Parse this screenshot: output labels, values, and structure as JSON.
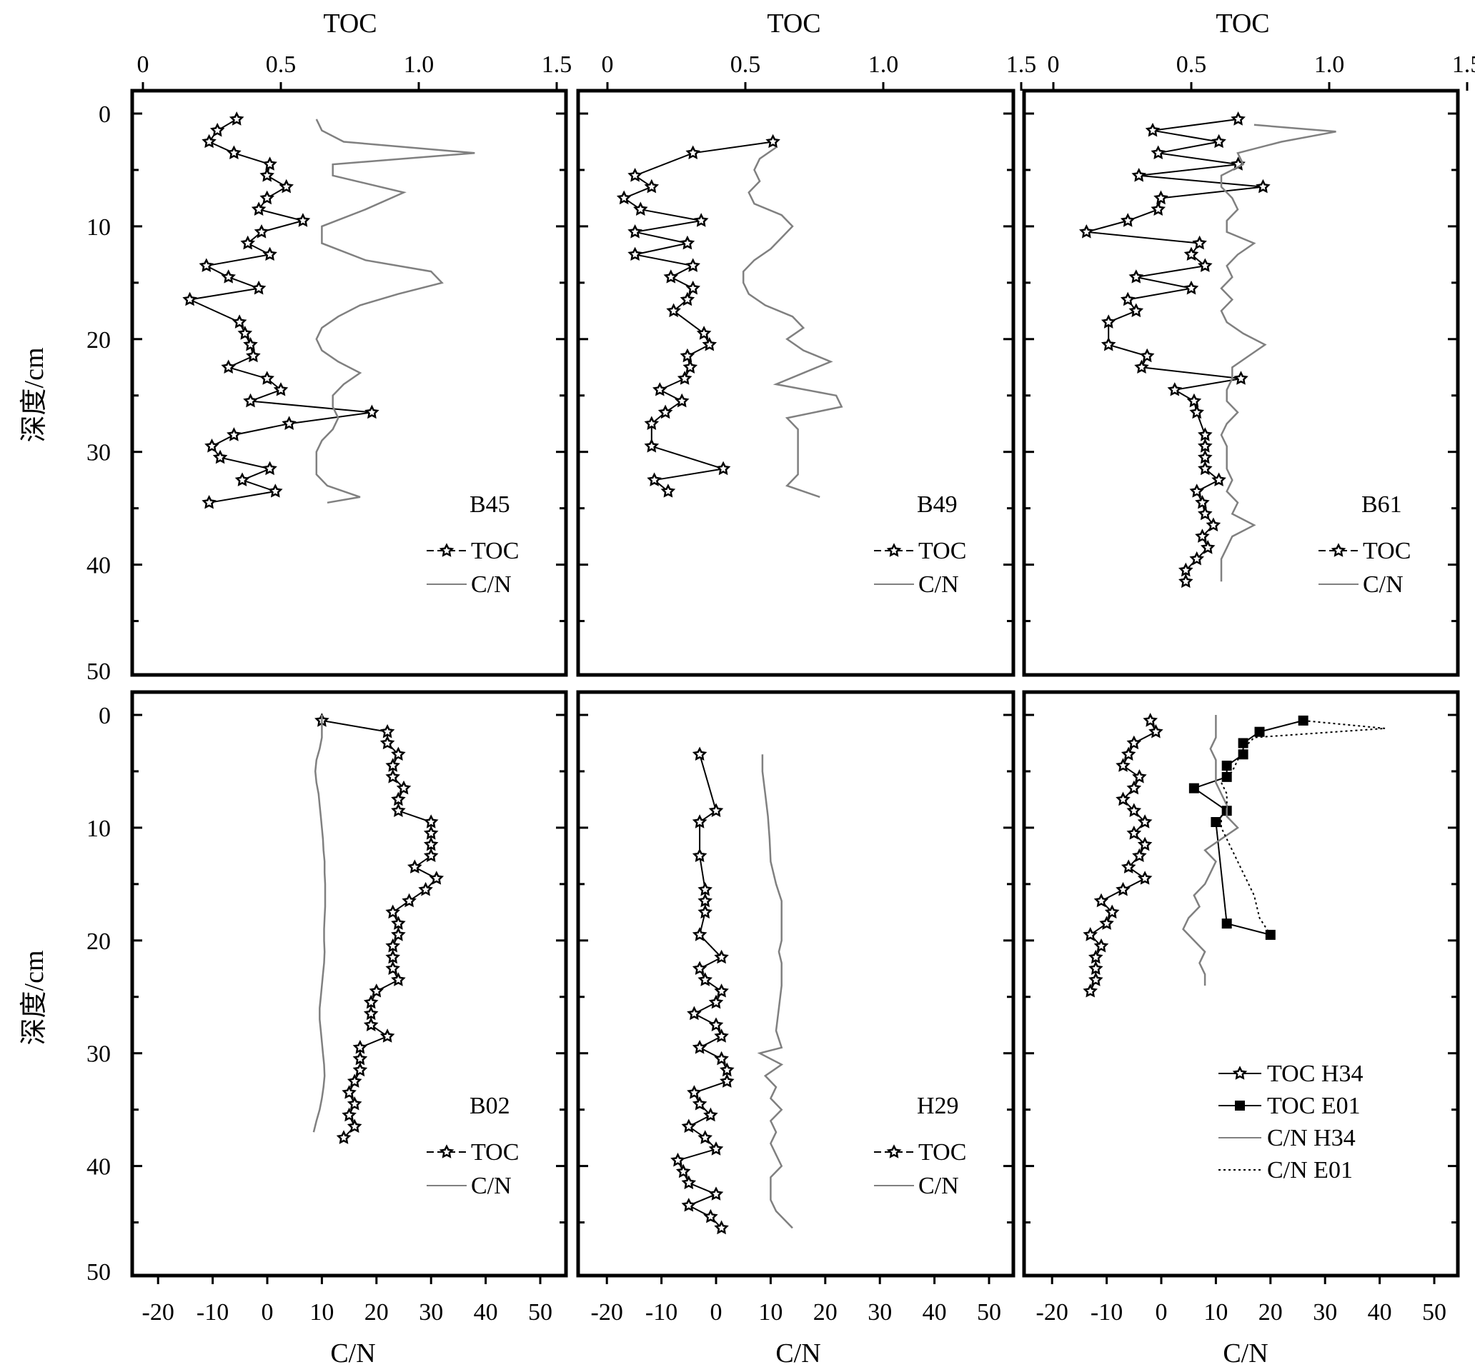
{
  "figure": {
    "top_axis_title": "TOC",
    "bottom_axis_title": "C/N",
    "y_axis_title": "深度/cm",
    "toc_ticks": [
      "0",
      "0.5",
      "1.0",
      "1.5"
    ],
    "cn_ticks": [
      "-20",
      "-10",
      "0",
      "10",
      "20",
      "30",
      "40",
      "50"
    ],
    "depth_ticks": [
      "0",
      "10",
      "20",
      "30",
      "40",
      "50"
    ]
  },
  "colors": {
    "toc": "#000000",
    "cn": "#808080",
    "cn_e01": "#000000"
  },
  "chart_data": [
    {
      "type": "line",
      "panel": "top-left",
      "site_label": "B45",
      "toc_range": [
        0,
        1.6
      ],
      "cn_range": [
        -25,
        55
      ],
      "depth_range": [
        -2,
        50
      ],
      "legend": [
        "TOC",
        "C/N"
      ],
      "series": [
        {
          "name": "TOC",
          "variable": "TOC",
          "marker": "star",
          "depth": [
            0.5,
            1.5,
            2.5,
            3.5,
            4.5,
            5.5,
            6.5,
            7.5,
            8.5,
            9.5,
            10.5,
            11.5,
            12.5,
            13.5,
            14.5,
            15.5,
            16.5,
            18.5,
            19.5,
            20.5,
            21.5,
            22.5,
            23.5,
            24.5,
            25.5,
            26.5,
            27.5,
            28.5,
            29.5,
            30.5,
            31.5,
            32.5,
            33.5,
            34.5
          ],
          "values": [
            0.34,
            0.27,
            0.24,
            0.33,
            0.46,
            0.45,
            0.52,
            0.45,
            0.42,
            0.58,
            0.43,
            0.38,
            0.46,
            0.23,
            0.31,
            0.42,
            0.17,
            0.35,
            0.37,
            0.39,
            0.4,
            0.31,
            0.45,
            0.5,
            0.39,
            0.83,
            0.53,
            0.33,
            0.25,
            0.28,
            0.46,
            0.36,
            0.48,
            0.24
          ]
        },
        {
          "name": "C/N",
          "variable": "C/N",
          "marker": "none",
          "depth": [
            0.5,
            1.5,
            2.5,
            3.5,
            4.5,
            5.5,
            7,
            8.5,
            10,
            11.5,
            13,
            14,
            15,
            16,
            17,
            18,
            19,
            20,
            21,
            22,
            23,
            24,
            25,
            26,
            27,
            28,
            29,
            30,
            31,
            32,
            33,
            34,
            34.5
          ],
          "values": [
            9,
            10,
            14,
            38,
            12,
            12,
            25,
            18,
            10,
            10,
            18,
            30,
            32,
            24,
            17,
            13,
            10,
            9,
            10,
            13,
            17,
            14,
            12,
            12,
            13,
            12,
            10,
            9,
            9,
            9,
            11,
            17,
            11
          ]
        }
      ]
    },
    {
      "type": "line",
      "panel": "top-middle",
      "site_label": "B49",
      "toc_range": [
        0,
        1.6
      ],
      "cn_range": [
        -25,
        55
      ],
      "depth_range": [
        -2,
        50
      ],
      "legend": [
        "TOC",
        "C/N"
      ],
      "series": [
        {
          "name": "TOC",
          "variable": "TOC",
          "marker": "star",
          "depth": [
            2.5,
            3.5,
            5.5,
            6.5,
            7.5,
            8.5,
            9.5,
            10.5,
            11.5,
            12.5,
            13.5,
            14.5,
            15.5,
            16.5,
            17.5,
            19.5,
            20.5,
            21.5,
            22.5,
            23.5,
            24.5,
            25.5,
            26.5,
            27.5,
            29.5,
            31.5,
            32.5,
            33.5
          ],
          "values": [
            0.6,
            0.31,
            0.1,
            0.16,
            0.06,
            0.12,
            0.34,
            0.1,
            0.29,
            0.1,
            0.31,
            0.23,
            0.31,
            0.29,
            0.24,
            0.35,
            0.37,
            0.29,
            0.3,
            0.28,
            0.19,
            0.27,
            0.21,
            0.16,
            0.16,
            0.42,
            0.17,
            0.22
          ]
        },
        {
          "name": "C/N",
          "variable": "C/N",
          "marker": "none",
          "depth": [
            3,
            4,
            5,
            6,
            7,
            8,
            9,
            10,
            11,
            12,
            13,
            14,
            15,
            16,
            17,
            18,
            19,
            20,
            21,
            22,
            23,
            24,
            25,
            26,
            27,
            28,
            29,
            30,
            31,
            32,
            33,
            34
          ],
          "values": [
            11,
            8,
            7,
            8,
            6,
            7,
            12,
            14,
            12,
            10,
            7,
            5,
            5,
            6,
            9,
            14,
            16,
            13,
            16,
            21,
            16,
            11,
            22,
            23,
            13,
            15,
            15,
            15,
            15,
            15,
            13,
            19
          ]
        }
      ]
    },
    {
      "type": "line",
      "panel": "top-right",
      "site_label": "B61",
      "toc_range": [
        0,
        1.6
      ],
      "cn_range": [
        -25,
        55
      ],
      "depth_range": [
        -2,
        50
      ],
      "legend": [
        "TOC",
        "C/N"
      ],
      "series": [
        {
          "name": "TOC",
          "variable": "TOC",
          "marker": "star",
          "depth": [
            0.5,
            1.5,
            2.5,
            3.5,
            4.5,
            5.5,
            6.5,
            7.5,
            8.5,
            9.5,
            10.5,
            11.5,
            12.5,
            13.5,
            14.5,
            15.5,
            16.5,
            17.5,
            18.5,
            20.5,
            21.5,
            22.5,
            23.5,
            24.5,
            25.5,
            26.5,
            28.5,
            29.5,
            30.5,
            31.5,
            32.5,
            33.5,
            34.5,
            35.5,
            36.5,
            37.5,
            38.5,
            39.5,
            40.5,
            41.5
          ],
          "values": [
            0.67,
            0.36,
            0.6,
            0.38,
            0.67,
            0.31,
            0.76,
            0.39,
            0.38,
            0.27,
            0.12,
            0.53,
            0.5,
            0.55,
            0.3,
            0.5,
            0.27,
            0.3,
            0.2,
            0.2,
            0.34,
            0.32,
            0.68,
            0.44,
            0.51,
            0.52,
            0.55,
            0.55,
            0.55,
            0.55,
            0.6,
            0.52,
            0.54,
            0.55,
            0.58,
            0.54,
            0.56,
            0.52,
            0.48,
            0.48
          ]
        },
        {
          "name": "C/N",
          "variable": "C/N",
          "marker": "none",
          "depth": [
            1,
            1.6,
            2.5,
            3.5,
            4.5,
            5.5,
            6.5,
            7.5,
            8.5,
            9.5,
            10.5,
            11.5,
            12.5,
            13.5,
            14.5,
            15.5,
            16.5,
            17.5,
            18.5,
            19.5,
            20.5,
            21.5,
            22.5,
            23.5,
            24.5,
            25.5,
            26.5,
            27.5,
            28.5,
            29.5,
            30.5,
            31.5,
            32.5,
            33.5,
            34.5,
            35.5,
            36.5,
            37.5,
            38.5,
            39.5,
            40.5,
            41.5
          ],
          "values": [
            17,
            32,
            22,
            14,
            15,
            11,
            11,
            13,
            14,
            12,
            12,
            17,
            14,
            12,
            13,
            11,
            13,
            11,
            12,
            15,
            19,
            16,
            13,
            13,
            12,
            12,
            14,
            12,
            11,
            12,
            12,
            12,
            13,
            12,
            14,
            13,
            17,
            13,
            12,
            11,
            11,
            11
          ]
        }
      ]
    },
    {
      "type": "line",
      "panel": "bottom-left",
      "site_label": "B02",
      "toc_range": [
        0,
        1.6
      ],
      "cn_range": [
        -25,
        55
      ],
      "depth_range": [
        -2,
        50
      ],
      "legend": [
        "TOC",
        "C/N"
      ],
      "series": [
        {
          "name": "TOC",
          "variable": "TOC",
          "marker": "star",
          "depth": [
            0.5,
            1.5,
            2.5,
            3.5,
            4.5,
            5.5,
            6.5,
            7.5,
            8.5,
            9.5,
            10.5,
            11.5,
            12.5,
            13.5,
            14.5,
            15.5,
            16.5,
            17.5,
            18.5,
            19.5,
            20.5,
            21.5,
            22.5,
            23.5,
            24.5,
            25.5,
            26.5,
            27.5,
            28.5,
            29.5,
            30.5,
            31.5,
            32.5,
            33.5,
            34.5,
            35.5,
            36.5,
            37.5
          ],
          "values": [
            10,
            22,
            22,
            24,
            23,
            23,
            25,
            24,
            24,
            30,
            30,
            30,
            30,
            27,
            31,
            29,
            26,
            23,
            24,
            24,
            23,
            23,
            23,
            24,
            20,
            19,
            19,
            19,
            22,
            17,
            17,
            17,
            16,
            15,
            16,
            15,
            16,
            14
          ]
        },
        {
          "name": "C/N",
          "variable": "C/N",
          "marker": "none",
          "depth": [
            0,
            1,
            2,
            3,
            4,
            5,
            6,
            7,
            8,
            9,
            10,
            11,
            12,
            13,
            14,
            15,
            16,
            17,
            18,
            19,
            20,
            21,
            22,
            23,
            24,
            25,
            26,
            27,
            28,
            29,
            30,
            31,
            32,
            33,
            34,
            35,
            36,
            37
          ],
          "values": [
            10,
            10,
            10,
            9.6,
            9,
            8.8,
            9,
            9.4,
            9.6,
            9.8,
            10,
            10.2,
            10.3,
            10.5,
            10.5,
            10.6,
            10.6,
            10.6,
            10.5,
            10.4,
            10.4,
            10.5,
            10.4,
            10.2,
            10,
            9.8,
            9.6,
            9.6,
            9.8,
            10,
            10.2,
            10.4,
            10.5,
            10.3,
            10,
            9.6,
            9,
            8.5
          ]
        }
      ]
    },
    {
      "type": "line",
      "panel": "bottom-middle",
      "site_label": "H29",
      "toc_range": [
        0,
        1.6
      ],
      "cn_range": [
        -25,
        55
      ],
      "depth_range": [
        -2,
        50
      ],
      "legend": [
        "TOC",
        "C/N"
      ],
      "series": [
        {
          "name": "TOC",
          "variable": "TOC",
          "marker": "star",
          "depth": [
            3.5,
            8.5,
            9.5,
            12.5,
            15.5,
            16.5,
            17.5,
            19.5,
            21.5,
            22.5,
            23.5,
            24.5,
            25.5,
            26.5,
            27.5,
            28.5,
            29.5,
            30.5,
            31.5,
            32.5,
            33.5,
            34.5,
            35.5,
            36.5,
            37.5,
            38.5,
            39.5,
            40.5,
            41.5,
            42.5,
            43.5,
            44.5,
            45.5
          ],
          "values": [
            -3,
            0,
            -3,
            -3,
            -2,
            -2,
            -2,
            -3,
            1,
            -3,
            -2,
            1,
            0,
            -4,
            0,
            1,
            -3,
            1,
            2,
            2,
            -4,
            -3,
            -1,
            -5,
            -2,
            0,
            -7,
            -6,
            -5,
            0,
            -5,
            -1,
            1
          ]
        },
        {
          "name": "C/N",
          "variable": "C/N",
          "marker": "none",
          "depth": [
            3.5,
            5,
            7,
            9,
            11,
            13,
            15,
            16.5,
            18,
            20,
            21,
            22,
            24,
            26,
            28,
            29.5,
            30,
            31,
            32,
            33,
            34,
            35,
            36,
            37,
            38,
            39,
            40,
            41,
            42,
            43,
            44,
            45,
            45.5
          ],
          "values": [
            8.5,
            8.5,
            9,
            9.5,
            9.8,
            10,
            11,
            12,
            12,
            12,
            11.5,
            12,
            12,
            11.5,
            11,
            12,
            8,
            12,
            9,
            11,
            10,
            12,
            10,
            11,
            10,
            11,
            12,
            10,
            10,
            10,
            11,
            13,
            14
          ]
        }
      ]
    },
    {
      "type": "line",
      "panel": "bottom-right",
      "site_label": "",
      "toc_range": [
        0,
        1.6
      ],
      "cn_range": [
        -25,
        55
      ],
      "depth_range": [
        -2,
        50
      ],
      "legend": [
        "TOC H34",
        "TOC E01",
        "C/N  H34",
        "C/N  E01"
      ],
      "series": [
        {
          "name": "TOC H34",
          "variable": "TOC",
          "marker": "star",
          "depth": [
            0.5,
            1.5,
            2.5,
            3.5,
            4.5,
            5.5,
            6.5,
            7.5,
            8.5,
            9.5,
            10.5,
            11.5,
            12.5,
            13.5,
            14.5,
            15.5,
            16.5,
            17.5,
            18.5,
            19.5,
            20.5,
            21.5,
            22.5,
            23.5,
            24.5
          ],
          "values": [
            -2,
            -1,
            -5,
            -6,
            -7,
            -4,
            -5,
            -7,
            -5,
            -3,
            -5,
            -3,
            -4,
            -6,
            -3,
            -7,
            -11,
            -9,
            -10,
            -13,
            -11,
            -12,
            -12,
            -12,
            -13
          ]
        },
        {
          "name": "TOC E01",
          "variable": "TOC",
          "marker": "square",
          "depth": [
            0.5,
            1.5,
            2.5,
            3.5,
            4.5,
            5.5,
            6.5,
            8.5,
            9.5,
            18.5,
            19.5
          ],
          "values": [
            26,
            18,
            15,
            15,
            12,
            12,
            6,
            12,
            10,
            12,
            20
          ]
        },
        {
          "name": "C/N  H34",
          "variable": "C/N",
          "marker": "none",
          "depth": [
            0,
            1,
            2,
            3,
            4,
            5,
            6,
            7,
            8,
            9,
            10,
            11,
            12,
            13,
            14,
            15,
            16,
            17,
            18,
            19,
            20,
            21,
            22,
            23,
            24
          ],
          "values": [
            10,
            10,
            10,
            9,
            10,
            10,
            10,
            11,
            12,
            12,
            14,
            11,
            8,
            10,
            9,
            8,
            6,
            7,
            5,
            4,
            6,
            8,
            7,
            8,
            8
          ]
        },
        {
          "name": "C/N  E01",
          "variable": "C/N",
          "marker": "none",
          "line_style": "dotted",
          "depth": [
            0.5,
            1.2,
            2,
            3,
            4,
            5,
            6,
            7,
            8,
            9,
            10,
            12,
            14,
            16,
            18,
            19.5
          ],
          "values": [
            26,
            41,
            17,
            15,
            14,
            13,
            11,
            12,
            12,
            11,
            11,
            13,
            15,
            17,
            18,
            20
          ]
        }
      ]
    }
  ]
}
